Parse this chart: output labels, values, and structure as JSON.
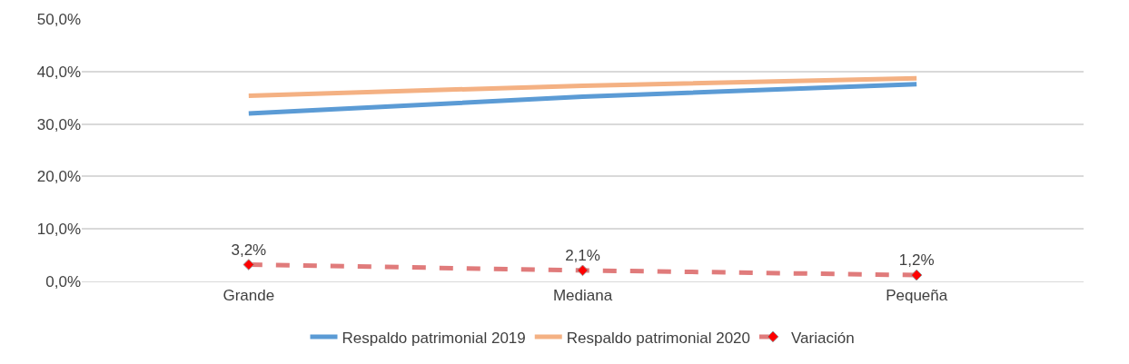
{
  "chart_data": {
    "type": "line",
    "categories": [
      "Grande",
      "Mediana",
      "Pequeña"
    ],
    "series": [
      {
        "name": "Respaldo patrimonial 2019",
        "color": "#5b9bd5",
        "values": [
          32.0,
          35.2,
          37.6
        ]
      },
      {
        "name": "Respaldo patrimonial 2020",
        "color": "#f4b183",
        "values": [
          35.4,
          37.3,
          38.7
        ]
      },
      {
        "name": "Variación",
        "color": "#e07b7b",
        "values": [
          3.2,
          2.1,
          1.2
        ],
        "marker": "diamond",
        "line_style": "dashed",
        "value_labels": [
          "3,2%",
          "2,1%",
          "1,2%"
        ]
      }
    ],
    "ylim": [
      0,
      50
    ],
    "yticks": [
      {
        "value": 0,
        "label": "0,0%"
      },
      {
        "value": 10,
        "label": "10,0%"
      },
      {
        "value": 20,
        "label": "20,0%"
      },
      {
        "value": 30,
        "label": "30,0%"
      },
      {
        "value": 40,
        "label": "40,0%"
      },
      {
        "value": 50,
        "label": "50,0%"
      }
    ],
    "grid": "y",
    "legend": "bottom",
    "marker": "none",
    "line_style": "solid"
  }
}
